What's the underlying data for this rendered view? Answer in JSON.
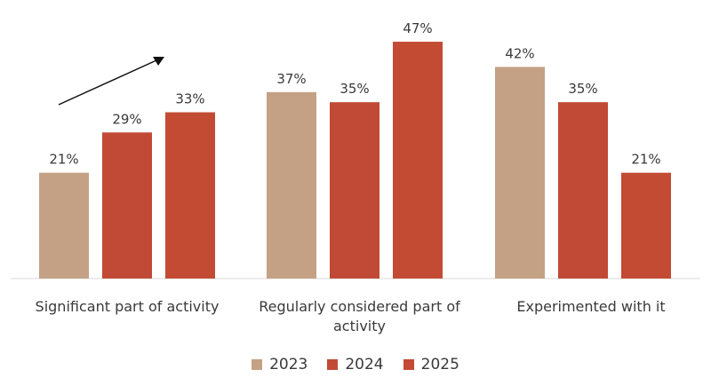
{
  "chart_data": {
    "type": "bar",
    "categories": [
      "Significant part of activity",
      "Regularly considered part of activity",
      "Experimented with it"
    ],
    "series": [
      {
        "name": "2023",
        "values": [
          21,
          37,
          42
        ],
        "labels": [
          "21%",
          "37%",
          "42%"
        ],
        "color": "#c4a185"
      },
      {
        "name": "2024",
        "values": [
          29,
          35,
          35
        ],
        "labels": [
          "29%",
          "35%",
          "35%"
        ],
        "color": "#c04a35"
      },
      {
        "name": "2025",
        "values": [
          33,
          47,
          21
        ],
        "labels": [
          "33%",
          "47%",
          "21%"
        ],
        "color": "#c34a33"
      }
    ],
    "ylim": [
      0,
      50
    ],
    "grid": false,
    "legend_position": "bottom",
    "annotations": [
      "upward-arrow-over-significant-part"
    ]
  }
}
